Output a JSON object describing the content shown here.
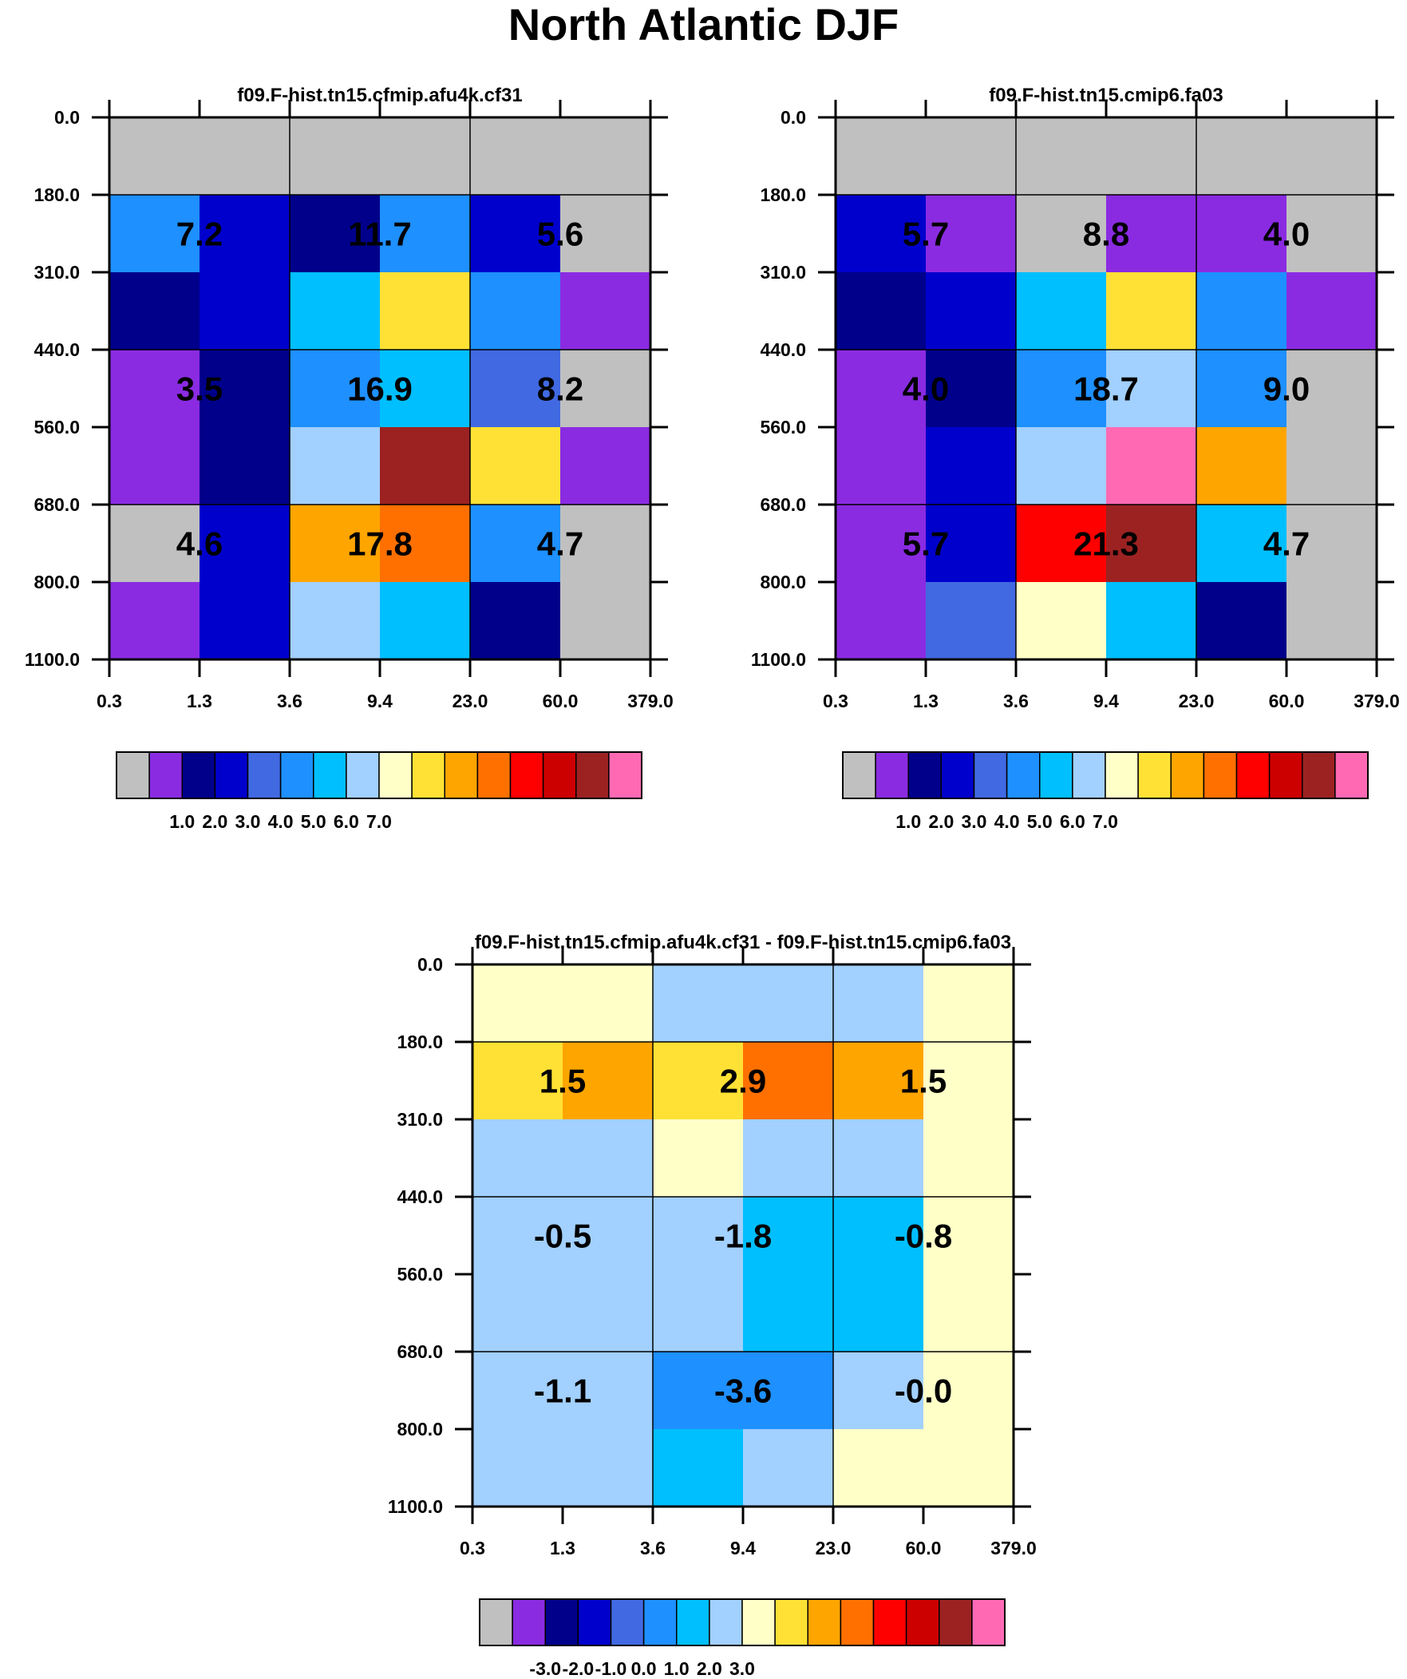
{
  "title": "North Atlantic DJF",
  "chart_data": [
    {
      "type": "heatmap",
      "title": "f09.F-hist.tn15.cfmip.afu4k.cf31",
      "x_tick_labels": [
        "0.3",
        "1.3",
        "3.6",
        "9.4",
        "23.0",
        "60.0",
        "379.0"
      ],
      "y_tick_labels": [
        "0.0",
        "180.0",
        "310.0",
        "440.0",
        "560.0",
        "680.0",
        "800.0",
        "1100.0"
      ],
      "cell_colors": [
        [
          "#c0c0c0",
          "#c0c0c0",
          "#c0c0c0",
          "#c0c0c0",
          "#c0c0c0",
          "#c0c0c0"
        ],
        [
          "#1e90ff",
          "#0000cd",
          "#00008b",
          "#1e90ff",
          "#0000cd",
          "#c0c0c0"
        ],
        [
          "#00008b",
          "#0000cd",
          "#00bfff",
          "#ffe135",
          "#1e90ff",
          "#8a2be2"
        ],
        [
          "#8a2be2",
          "#00008b",
          "#1e90ff",
          "#00bfff",
          "#4169e1",
          "#c0c0c0"
        ],
        [
          "#8a2be2",
          "#00008b",
          "#a2d0ff",
          "#9c2222",
          "#ffe135",
          "#8a2be2"
        ],
        [
          "#c0c0c0",
          "#0000cd",
          "#ffa500",
          "#ff7000",
          "#1e90ff",
          "#c0c0c0"
        ],
        [
          "#8a2be2",
          "#0000cd",
          "#a2d0ff",
          "#00bfff",
          "#00008b",
          "#c0c0c0"
        ]
      ],
      "block_values": [
        [
          "7.2",
          "11.7",
          "5.6"
        ],
        [
          "3.5",
          "16.9",
          "8.2"
        ],
        [
          "4.6",
          "17.8",
          "4.7"
        ]
      ],
      "legend_labels": [
        "1.0",
        "2.0",
        "3.0",
        "4.0",
        "5.0",
        "6.0",
        "7.0"
      ],
      "legend_colors": [
        "#c0c0c0",
        "#8a2be2",
        "#00008b",
        "#0000cd",
        "#4169e1",
        "#1e90ff",
        "#00bfff",
        "#a2d0ff",
        "#ffffc8",
        "#ffe135",
        "#ffa500",
        "#ff7000",
        "#ff0000",
        "#cd0000",
        "#9c2222",
        "#ff69b4"
      ]
    },
    {
      "type": "heatmap",
      "title": "f09.F-hist.tn15.cmip6.fa03",
      "x_tick_labels": [
        "0.3",
        "1.3",
        "3.6",
        "9.4",
        "23.0",
        "60.0",
        "379.0"
      ],
      "y_tick_labels": [
        "0.0",
        "180.0",
        "310.0",
        "440.0",
        "560.0",
        "680.0",
        "800.0",
        "1100.0"
      ],
      "cell_colors": [
        [
          "#c0c0c0",
          "#c0c0c0",
          "#c0c0c0",
          "#c0c0c0",
          "#c0c0c0",
          "#c0c0c0"
        ],
        [
          "#0000cd",
          "#8a2be2",
          "#c0c0c0",
          "#8a2be2",
          "#8a2be2",
          "#c0c0c0"
        ],
        [
          "#00008b",
          "#0000cd",
          "#00bfff",
          "#ffe135",
          "#1e90ff",
          "#8a2be2"
        ],
        [
          "#8a2be2",
          "#00008b",
          "#1e90ff",
          "#a2d0ff",
          "#1e90ff",
          "#c0c0c0"
        ],
        [
          "#8a2be2",
          "#0000cd",
          "#a2d0ff",
          "#ff69b4",
          "#ffa500",
          "#c0c0c0"
        ],
        [
          "#8a2be2",
          "#0000cd",
          "#ff0000",
          "#9c2222",
          "#00bfff",
          "#c0c0c0"
        ],
        [
          "#8a2be2",
          "#4169e1",
          "#ffffc8",
          "#00bfff",
          "#00008b",
          "#c0c0c0"
        ]
      ],
      "block_values": [
        [
          "5.7",
          "8.8",
          "4.0"
        ],
        [
          "4.0",
          "18.7",
          "9.0"
        ],
        [
          "5.7",
          "21.3",
          "4.7"
        ]
      ],
      "legend_labels": [
        "1.0",
        "2.0",
        "3.0",
        "4.0",
        "5.0",
        "6.0",
        "7.0"
      ],
      "legend_colors": [
        "#c0c0c0",
        "#8a2be2",
        "#00008b",
        "#0000cd",
        "#4169e1",
        "#1e90ff",
        "#00bfff",
        "#a2d0ff",
        "#ffffc8",
        "#ffe135",
        "#ffa500",
        "#ff7000",
        "#ff0000",
        "#cd0000",
        "#9c2222",
        "#ff69b4"
      ]
    },
    {
      "type": "heatmap",
      "title": "f09.F-hist.tn15.cfmip.afu4k.cf31 - f09.F-hist.tn15.cmip6.fa03",
      "x_tick_labels": [
        "0.3",
        "1.3",
        "3.6",
        "9.4",
        "23.0",
        "60.0",
        "379.0"
      ],
      "y_tick_labels": [
        "0.0",
        "180.0",
        "310.0",
        "440.0",
        "560.0",
        "680.0",
        "800.0",
        "1100.0"
      ],
      "cell_colors": [
        [
          "#ffffc8",
          "#ffffc8",
          "#a2d0ff",
          "#a2d0ff",
          "#a2d0ff",
          "#ffffc8"
        ],
        [
          "#ffe135",
          "#ffa500",
          "#ffe135",
          "#ff7000",
          "#ffa500",
          "#ffffc8"
        ],
        [
          "#a2d0ff",
          "#a2d0ff",
          "#ffffc8",
          "#a2d0ff",
          "#a2d0ff",
          "#ffffc8"
        ],
        [
          "#a2d0ff",
          "#a2d0ff",
          "#a2d0ff",
          "#00bfff",
          "#00bfff",
          "#ffffc8"
        ],
        [
          "#a2d0ff",
          "#a2d0ff",
          "#a2d0ff",
          "#00bfff",
          "#00bfff",
          "#ffffc8"
        ],
        [
          "#a2d0ff",
          "#a2d0ff",
          "#1e90ff",
          "#1e90ff",
          "#a2d0ff",
          "#ffffc8"
        ],
        [
          "#a2d0ff",
          "#a2d0ff",
          "#00bfff",
          "#a2d0ff",
          "#ffffc8",
          "#ffffc8"
        ]
      ],
      "block_values": [
        [
          "1.5",
          "2.9",
          "1.5"
        ],
        [
          "-0.5",
          "-1.8",
          "-0.8"
        ],
        [
          "-1.1",
          "-3.6",
          "-0.0"
        ]
      ],
      "legend_labels": [
        "-3.0",
        "-2.0",
        "-1.0",
        "0.0",
        "1.0",
        "2.0",
        "3.0"
      ],
      "legend_colors": [
        "#c0c0c0",
        "#8a2be2",
        "#00008b",
        "#0000cd",
        "#4169e1",
        "#1e90ff",
        "#00bfff",
        "#a2d0ff",
        "#ffffc8",
        "#ffe135",
        "#ffa500",
        "#ff7000",
        "#ff0000",
        "#cd0000",
        "#9c2222",
        "#ff69b4"
      ]
    }
  ]
}
